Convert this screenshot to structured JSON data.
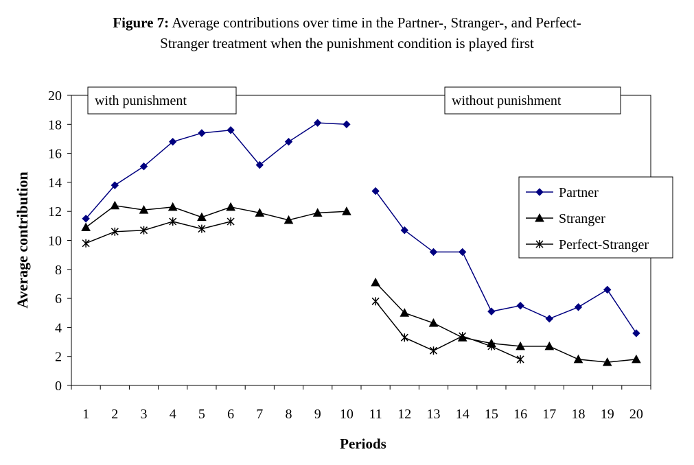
{
  "caption": {
    "label": "Figure 7:",
    "line1": "Average contributions over time in the Partner-, Stranger-, and Perfect-",
    "line2": "Stranger treatment when the punishment condition is played first"
  },
  "chart_data": {
    "type": "line",
    "xlabel": "Periods",
    "ylabel": "Average contribution",
    "ylim": [
      0,
      20
    ],
    "yticks": [
      0,
      2,
      4,
      6,
      8,
      10,
      12,
      14,
      16,
      18,
      20
    ],
    "categories": [
      1,
      2,
      3,
      4,
      5,
      6,
      7,
      8,
      9,
      10,
      11,
      12,
      13,
      14,
      15,
      16,
      17,
      18,
      19,
      20
    ],
    "grid": false,
    "legend_position": "right",
    "annotations": [
      "with punishment",
      "without punishment"
    ],
    "series": [
      {
        "name": "Partner",
        "marker": "diamond",
        "color": "#000080",
        "values": [
          11.5,
          13.8,
          15.1,
          16.8,
          17.4,
          17.6,
          15.2,
          16.8,
          18.1,
          18.0,
          13.4,
          10.7,
          9.2,
          9.2,
          5.1,
          5.5,
          4.6,
          5.4,
          6.6,
          3.6
        ]
      },
      {
        "name": "Stranger",
        "marker": "triangle",
        "color": "#000000",
        "values": [
          10.9,
          12.4,
          12.1,
          12.3,
          11.6,
          12.3,
          11.9,
          11.4,
          11.9,
          12.0,
          7.1,
          5.0,
          4.3,
          3.3,
          2.9,
          2.7,
          2.7,
          1.8,
          1.6,
          1.8
        ]
      },
      {
        "name": "Perfect-Stranger",
        "marker": "asterisk",
        "color": "#000000",
        "values": [
          9.8,
          10.6,
          10.7,
          11.3,
          10.8,
          11.3,
          null,
          null,
          null,
          null,
          5.8,
          3.3,
          2.4,
          3.4,
          2.7,
          1.8,
          null,
          null,
          null,
          null
        ]
      }
    ]
  }
}
